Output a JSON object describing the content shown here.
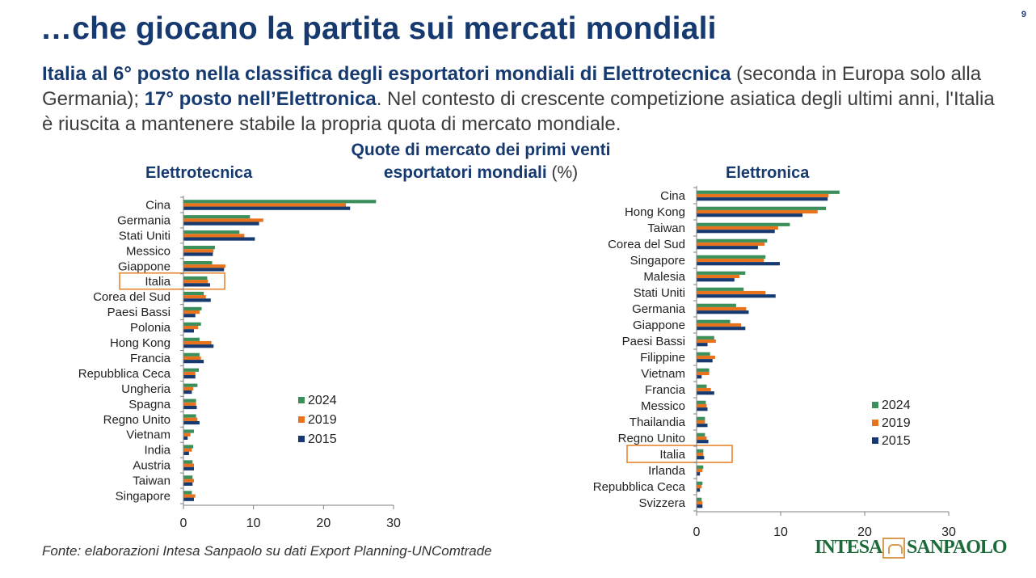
{
  "page_number": "9",
  "title": "…che giocano la partita sui mercati mondiali",
  "subtitle": {
    "bold1": "Italia al 6° posto nella classifica degli esportatori mondiali di Elettrotecnica",
    "text1": " (seconda in Europa solo alla Germania); ",
    "bold2": "17° posto nell’Elettronica",
    "text2": ". Nel contesto di crescente competizione asiatica degli ultimi anni, l'Italia è riuscita a mantenere stabile la propria quota di mercato mondiale."
  },
  "chart_title": {
    "main": "Quote di mercato dei primi venti esportatori mondiali",
    "unit": "(%)"
  },
  "source": "Fonte: elaborazioni Intesa Sanpaolo su dati Export Planning-UNComtrade",
  "logo": {
    "left": "INTESA",
    "right": "SANPAOLO"
  },
  "colors": {
    "2024": "#3a8f5b",
    "2019": "#e8731c",
    "2015": "#163a70",
    "highlight": "#e8862e",
    "axis": "#7f7f7f"
  },
  "chart_data": [
    {
      "type": "bar",
      "orientation": "horizontal",
      "title": "Elettrotecnica",
      "highlight": "Italia",
      "categories": [
        "Cina",
        "Germania",
        "Stati Uniti",
        "Messico",
        "Giappone",
        "Italia",
        "Corea del Sud",
        "Paesi Bassi",
        "Polonia",
        "Hong Kong",
        "Francia",
        "Repubblica Ceca",
        "Ungheria",
        "Spagna",
        "Regno Unito",
        "Vietnam",
        "India",
        "Austria",
        "Taiwan",
        "Singapore"
      ],
      "series": [
        {
          "name": "2024",
          "values": [
            27.5,
            9.5,
            8.0,
            4.5,
            4.1,
            3.4,
            2.9,
            2.6,
            2.5,
            2.3,
            2.3,
            2.2,
            2.0,
            1.8,
            1.8,
            1.5,
            1.4,
            1.3,
            1.3,
            1.2
          ]
        },
        {
          "name": "2019",
          "values": [
            23.2,
            11.4,
            8.7,
            4.3,
            6.0,
            3.5,
            3.2,
            2.3,
            2.1,
            4.0,
            2.5,
            1.7,
            1.4,
            1.8,
            2.0,
            1.0,
            1.2,
            1.5,
            1.5,
            1.7
          ]
        },
        {
          "name": "2015",
          "values": [
            23.8,
            10.8,
            10.2,
            4.2,
            5.8,
            3.8,
            3.9,
            1.7,
            1.5,
            4.3,
            2.9,
            1.7,
            1.2,
            1.9,
            2.3,
            0.6,
            0.8,
            1.5,
            1.3,
            1.5
          ]
        }
      ],
      "xlim": [
        0,
        30
      ],
      "xticks": [
        0,
        10,
        20,
        30
      ],
      "legend": [
        "2024",
        "2019",
        "2015"
      ]
    },
    {
      "type": "bar",
      "orientation": "horizontal",
      "title": "Elettronica",
      "highlight": "Italia",
      "categories": [
        "Cina",
        "Hong Kong",
        "Taiwan",
        "Corea del Sud",
        "Singapore",
        "Malesia",
        "Stati Uniti",
        "Germania",
        "Giappone",
        "Paesi Bassi",
        "Filippine",
        "Vietnam",
        "Francia",
        "Messico",
        "Thailandia",
        "Regno Unito",
        "Italia",
        "Irlanda",
        "Repubblica Ceca",
        "Svizzera"
      ],
      "series": [
        {
          "name": "2024",
          "values": [
            17.0,
            15.4,
            11.1,
            8.4,
            8.2,
            5.8,
            5.6,
            4.7,
            4.0,
            2.1,
            1.6,
            1.5,
            1.2,
            1.1,
            1.0,
            1.0,
            0.8,
            0.8,
            0.7,
            0.6
          ]
        },
        {
          "name": "2019",
          "values": [
            15.7,
            14.4,
            9.7,
            8.1,
            8.0,
            5.1,
            8.2,
            5.9,
            5.3,
            2.3,
            2.2,
            1.5,
            1.7,
            1.2,
            1.0,
            1.2,
            0.8,
            0.7,
            0.6,
            0.7
          ]
        },
        {
          "name": "2015",
          "values": [
            15.6,
            12.6,
            9.3,
            7.3,
            9.9,
            4.5,
            9.4,
            6.2,
            5.8,
            1.3,
            1.9,
            0.6,
            2.1,
            1.3,
            1.3,
            1.4,
            0.9,
            0.4,
            0.4,
            0.7
          ]
        }
      ],
      "xlim": [
        0,
        30
      ],
      "xticks": [
        0,
        10,
        20,
        30
      ],
      "legend": [
        "2024",
        "2019",
        "2015"
      ]
    }
  ]
}
